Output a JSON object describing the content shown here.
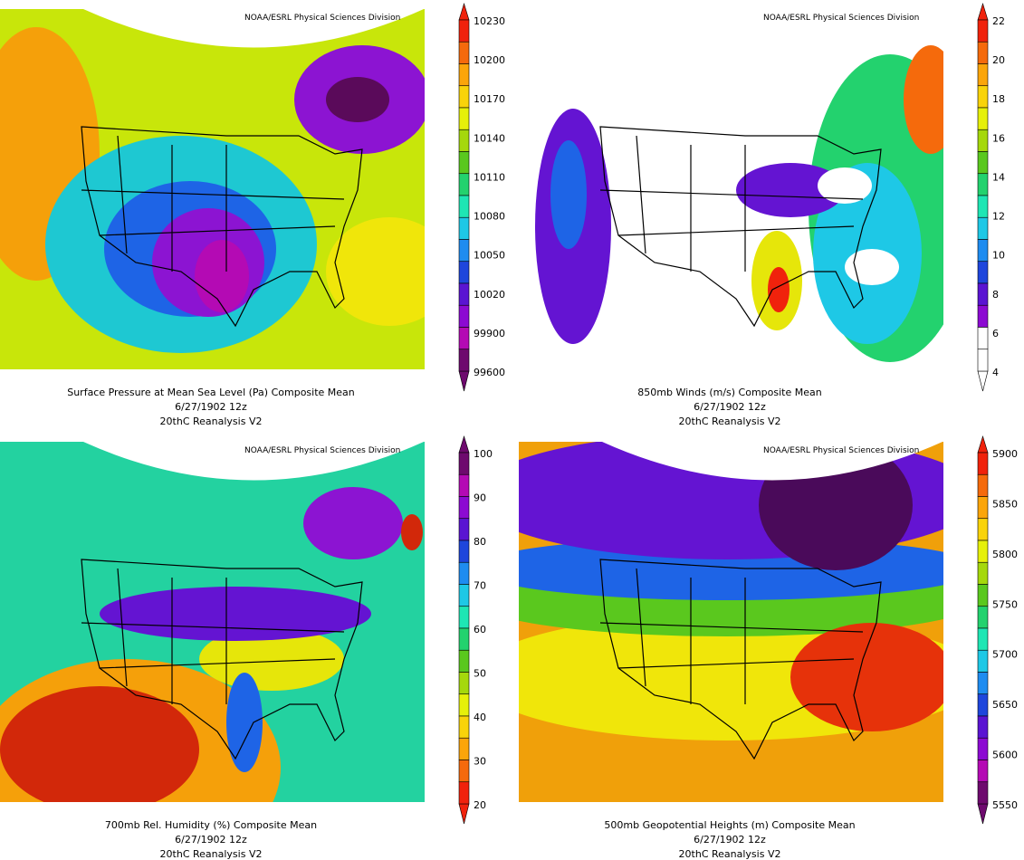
{
  "panels": [
    {
      "credit": "NOAA/ESRL Physical Sciences Division",
      "caption": [
        "Surface Pressure at Mean Sea Level (Pa)    Composite Mean",
        "6/27/1902 12z",
        "20thC Reanalysis V2"
      ],
      "colorbar_labels": [
        "10230",
        "10200",
        "10170",
        "10140",
        "10110",
        "10080",
        "10050",
        "10020",
        "99900",
        "99600"
      ],
      "colorbar_colors": [
        "#f0220c",
        "#f56a0c",
        "#fba50a",
        "#f9d30a",
        "#e6f00a",
        "#a5d80c",
        "#5ac81e",
        "#23d26e",
        "#1ee6b4",
        "#1ec8e6",
        "#1e8cf0",
        "#1e46dc",
        "#5a14d2",
        "#8c0ad2",
        "#b40ab4",
        "#6e0a6e"
      ]
    },
    {
      "credit": "NOAA/ESRL Physical Sciences Division",
      "caption": [
        "850mb Winds (m/s)    Composite Mean",
        "6/27/1902 12z",
        "20thC Reanalysis V2"
      ],
      "colorbar_labels": [
        "22",
        "20",
        "18",
        "16",
        "14",
        "12",
        "10",
        "8",
        "6",
        "4"
      ],
      "colorbar_colors": [
        "#f0220c",
        "#f56a0c",
        "#fba50a",
        "#f9d30a",
        "#e6f00a",
        "#a5d80c",
        "#5ac81e",
        "#23d26e",
        "#1ee6b4",
        "#1ec8e6",
        "#1e8cf0",
        "#1e46dc",
        "#5a14d2",
        "#8c0ad2",
        "#ffffff",
        "#ffffff"
      ]
    },
    {
      "credit": "NOAA/ESRL Physical Sciences Division",
      "caption": [
        "700mb Rel. Humidity (%)    Composite Mean",
        "6/27/1902 12z",
        "20thC Reanalysis V2"
      ],
      "colorbar_labels": [
        "100",
        "90",
        "80",
        "70",
        "60",
        "50",
        "40",
        "30",
        "20"
      ],
      "colorbar_colors": [
        "#6e0a6e",
        "#b40ab4",
        "#8c0ad2",
        "#5a14d2",
        "#1e46dc",
        "#1e8cf0",
        "#1ec8e6",
        "#1ee6b4",
        "#23d26e",
        "#5ac81e",
        "#a5d80c",
        "#e6f00a",
        "#f9d30a",
        "#fba50a",
        "#f56a0c",
        "#f0220c"
      ]
    },
    {
      "credit": "NOAA/ESRL Physical Sciences Division",
      "caption": [
        "500mb Geopotential Heights (m)    Composite Mean",
        "6/27/1902 12z",
        "20thC Reanalysis V2"
      ],
      "colorbar_labels": [
        "5900",
        "5850",
        "5800",
        "5750",
        "5700",
        "5650",
        "5600",
        "5550"
      ],
      "colorbar_colors": [
        "#f0220c",
        "#f56a0c",
        "#fba50a",
        "#f9d30a",
        "#e6f00a",
        "#a5d80c",
        "#5ac81e",
        "#23d26e",
        "#1ee6b4",
        "#1ec8e6",
        "#1e8cf0",
        "#1e46dc",
        "#5a14d2",
        "#8c0ad2",
        "#b40ab4",
        "#6e0a6e"
      ]
    }
  ]
}
